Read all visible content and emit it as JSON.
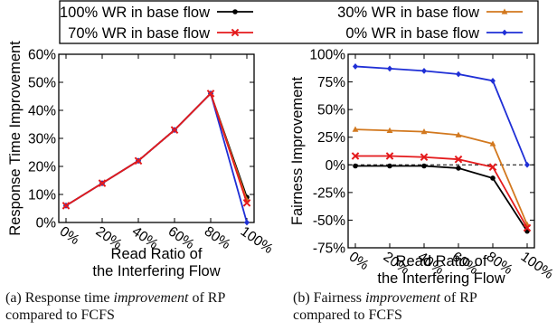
{
  "legend": {
    "entries": [
      {
        "label": "100% WR in base flow",
        "color": "#000000",
        "marker": "circle"
      },
      {
        "label": "30% WR in base flow",
        "color": "#d2781e",
        "marker": "triangle"
      },
      {
        "label": "70% WR in base flow",
        "color": "#e41a1c",
        "marker": "x"
      },
      {
        "label": "0% WR in base flow",
        "color": "#1f2fd6",
        "marker": "diamond"
      }
    ]
  },
  "chart_data": [
    {
      "type": "line",
      "ylabel": "Response Time Improvement",
      "xlabel_lines": [
        "Read Ratio of",
        "the Interfering Flow"
      ],
      "categories": [
        "0%",
        "20%",
        "40%",
        "60%",
        "80%",
        "100%"
      ],
      "ylim": [
        0,
        60
      ],
      "y_ticks": [
        "0%",
        "10%",
        "20%",
        "30%",
        "40%",
        "50%",
        "60%"
      ],
      "grid": false,
      "series": [
        {
          "name": "100% WR in base flow",
          "values": [
            6,
            14,
            22,
            33,
            46,
            9
          ]
        },
        {
          "name": "30% WR in base flow",
          "values": [
            6,
            14,
            22,
            33,
            46,
            8
          ]
        },
        {
          "name": "70% WR in base flow",
          "values": [
            6,
            14,
            22,
            33,
            46,
            7
          ]
        },
        {
          "name": "0% WR in base flow",
          "values": [
            6,
            14,
            22,
            33,
            46,
            0
          ]
        }
      ],
      "caption": {
        "pre": "(a) Response time ",
        "em": "improvement",
        "post": " of RP compared to FCFS"
      }
    },
    {
      "type": "line",
      "ylabel": "Fairness Improvement",
      "xlabel_lines": [
        "Read Ratio of",
        "the Interfering Flow"
      ],
      "categories": [
        "0%",
        "20%",
        "40%",
        "60%",
        "80%",
        "100%"
      ],
      "ylim": [
        -75,
        100
      ],
      "y_ticks": [
        "-75%",
        "-50%",
        "-25%",
        "0%",
        "25%",
        "50%",
        "75%",
        "100%"
      ],
      "zero_line": "dashed",
      "grid": false,
      "series": [
        {
          "name": "100% WR in base flow",
          "values": [
            -1,
            -1,
            -1,
            -3,
            -12,
            -60
          ]
        },
        {
          "name": "30% WR in base flow",
          "values": [
            32,
            31,
            30,
            27,
            19,
            -54
          ]
        },
        {
          "name": "70% WR in base flow",
          "values": [
            8,
            8,
            7,
            5,
            -2,
            -57
          ]
        },
        {
          "name": "0% WR in base flow",
          "values": [
            89,
            87,
            85,
            82,
            76,
            0
          ]
        }
      ],
      "caption": {
        "pre": "(b) Fairness ",
        "em": "improvement",
        "post": " of RP compared to FCFS"
      }
    }
  ]
}
